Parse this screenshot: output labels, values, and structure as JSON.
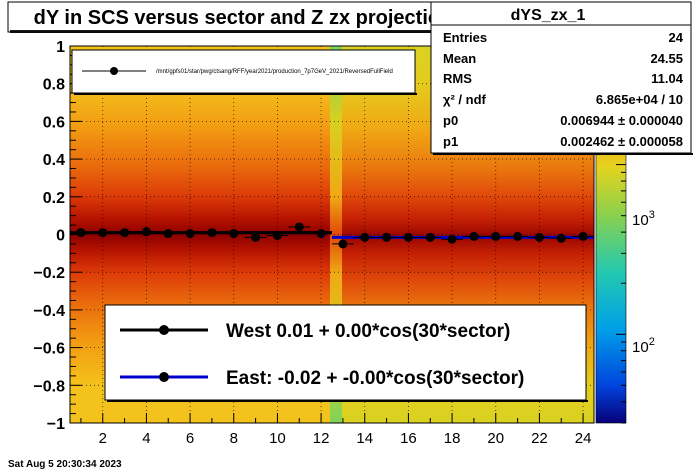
{
  "chart_data": {
    "type": "heatmap",
    "title": "dY in SCS versus sector and Z zx projection",
    "xlabel": "",
    "ylabel": "",
    "xlim": [
      0.5,
      24.5
    ],
    "ylim": [
      -1,
      1
    ],
    "x_ticks": [
      "2",
      "4",
      "6",
      "8",
      "10",
      "12",
      "14",
      "16",
      "18",
      "20",
      "22",
      "24"
    ],
    "y_ticks": [
      "1",
      "0.8",
      "0.6",
      "0.4",
      "0.2",
      "0",
      "−0.2",
      "−0.4",
      "−0.6",
      "−0.8",
      "−1"
    ],
    "colorbar": {
      "scale": "log",
      "range": [
        30,
        5000
      ],
      "labels": [
        {
          "text": "10",
          "exp": "3",
          "value": 1000
        },
        {
          "text": "10",
          "exp": "2",
          "value": 100
        }
      ]
    },
    "series": [
      {
        "name": "/mnt/gpfs01/star/pwg/ctsang/RFF/year2021/production_7p7GeV_2021/ReversedFullField",
        "x": [
          1,
          2,
          3,
          4,
          5,
          6,
          7,
          8,
          9,
          10,
          11,
          12,
          13,
          14,
          15,
          16,
          17,
          18,
          19,
          20,
          21,
          22,
          23,
          24
        ],
        "y": [
          0.01,
          0.01,
          0.01,
          0.015,
          0.005,
          0.005,
          0.01,
          0.005,
          -0.015,
          -0.005,
          0.04,
          0.005,
          -0.05,
          -0.015,
          -0.015,
          -0.015,
          -0.015,
          -0.025,
          -0.01,
          -0.01,
          -0.01,
          -0.015,
          -0.02,
          -0.01
        ]
      }
    ],
    "fits": [
      {
        "name": "West  0.01 +  0.00*cos(30*sector)",
        "color": "#000000",
        "x_range": [
          0.5,
          12.5
        ],
        "y": 0.01
      },
      {
        "name": "East: -0.02 + -0.00*cos(30*sector)",
        "color": "#0000cc",
        "x_range": [
          12.5,
          24.5
        ],
        "y": -0.015
      }
    ],
    "stats": {
      "name": "dYS_zx_1",
      "rows": [
        {
          "label": "Entries",
          "value": "24"
        },
        {
          "label": "Mean",
          "value": "24.55"
        },
        {
          "label": "RMS",
          "value": "11.04"
        },
        {
          "label": "χ² / ndf",
          "value": "6.865e+04 / 10"
        },
        {
          "label": "p0",
          "value": "0.006944  ± 0.000040"
        },
        {
          "label": "p1",
          "value": "0.002462  ± 0.000058"
        }
      ]
    },
    "legend_placement": "bottom-right",
    "grid": true
  },
  "footer": {
    "date": "Sat Aug  5 20:30:34 2023"
  }
}
